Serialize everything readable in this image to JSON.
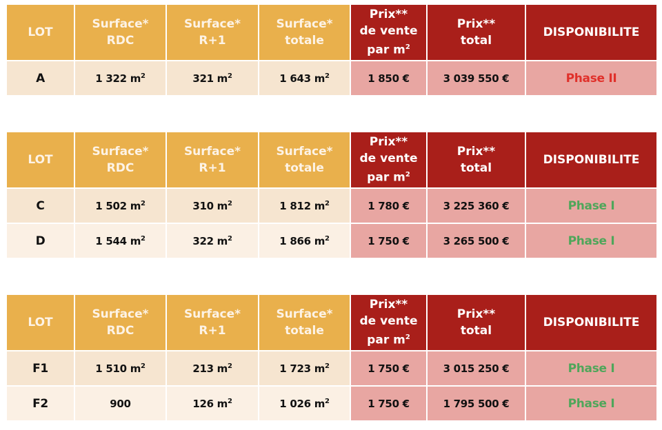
{
  "headers": [
    "LOT",
    "Surface*\nRDC",
    "Surface*\nR+1",
    "Surface*\ntotale",
    "Prix**\nde vente\npar m²",
    "Prix**\ntotal",
    "DISPONIBILITE"
  ],
  "colors": {
    "header_surface": "#e9b04c",
    "header_price": "#a91f1a",
    "row_surface": "#f6e5d0",
    "row_price": "#e8a6a2",
    "phase_II": "#e0302a",
    "phase_I": "#4fa65a"
  },
  "tables": [
    {
      "rows": [
        {
          "lot": "A",
          "rdc": "1 322 m²",
          "r1": "321 m²",
          "total_surface": "1 643 m²",
          "price_m2": "1 850 €",
          "price_total": "3 039 550 €",
          "availability": "Phase II",
          "status": "phase_II"
        }
      ]
    },
    {
      "rows": [
        {
          "lot": "C",
          "rdc": "1 502 m²",
          "r1": "310 m²",
          "total_surface": "1 812 m²",
          "price_m2": "1 780 €",
          "price_total": "3 225 360 €",
          "availability": "Phase I",
          "status": "phase_I"
        },
        {
          "lot": "D",
          "rdc": "1 544 m²",
          "r1": "322 m²",
          "total_surface": "1 866 m²",
          "price_m2": "1 750 €",
          "price_total": "3 265 500 €",
          "availability": "Phase I",
          "status": "phase_I"
        }
      ]
    },
    {
      "rows": [
        {
          "lot": "F1",
          "rdc": "1 510 m²",
          "r1": "213 m²",
          "total_surface": "1 723 m²",
          "price_m2": "1 750 €",
          "price_total": "3 015 250 €",
          "availability": "Phase I",
          "status": "phase_I"
        },
        {
          "lot": "F2",
          "rdc": "900",
          "r1": "126 m²",
          "total_surface": "1 026 m²",
          "price_m2": "1 750 €",
          "price_total": "1 795 500 €",
          "availability": "Phase I",
          "status": "phase_I"
        }
      ]
    }
  ]
}
